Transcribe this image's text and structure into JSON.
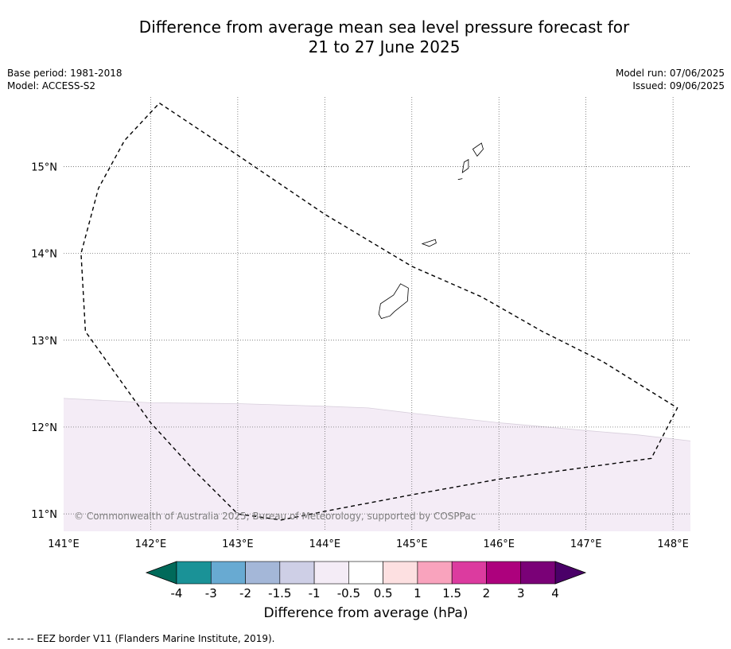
{
  "header": {
    "title_line1": "Difference from average mean sea level pressure forecast for",
    "title_line2": "21 to 27 June 2025",
    "base_period": "Base period: 1981-2018",
    "model": "Model: ACCESS-S2",
    "model_run": "Model run: 07/06/2025",
    "issued": "Issued: 09/06/2025"
  },
  "map": {
    "lon_range": [
      141,
      148.2
    ],
    "lat_range": [
      10.8,
      15.8
    ],
    "lon_ticks": [
      {
        "value": 141,
        "label": "141°E"
      },
      {
        "value": 142,
        "label": "142°E"
      },
      {
        "value": 143,
        "label": "143°E"
      },
      {
        "value": 144,
        "label": "144°E"
      },
      {
        "value": 145,
        "label": "145°E"
      },
      {
        "value": 146,
        "label": "146°E"
      },
      {
        "value": 147,
        "label": "147°E"
      },
      {
        "value": 148,
        "label": "148°E"
      }
    ],
    "lat_ticks": [
      {
        "value": 15,
        "label": "15°N"
      },
      {
        "value": 14,
        "label": "14°N"
      },
      {
        "value": 13,
        "label": "13°N"
      },
      {
        "value": 12,
        "label": "12°N"
      },
      {
        "value": 11,
        "label": "11°N"
      }
    ],
    "gridlines": true,
    "copyright": "© Commonwealth of Australia 2025, Bureau of Meteorology, supported by COSPPac",
    "anomaly_region": {
      "category": "-1 to -0.5",
      "color": "#f4ecf6",
      "northern_edge": [
        [
          141.0,
          12.33
        ],
        [
          142.0,
          12.28
        ],
        [
          143.0,
          12.27
        ],
        [
          144.0,
          12.24
        ],
        [
          144.5,
          12.22
        ],
        [
          145.0,
          12.16
        ],
        [
          146.0,
          12.05
        ],
        [
          147.0,
          11.96
        ],
        [
          147.6,
          11.91
        ],
        [
          148.2,
          11.84
        ]
      ]
    },
    "eez_border": [
      [
        142.1,
        15.73
      ],
      [
        143.0,
        15.13
      ],
      [
        144.0,
        14.45
      ],
      [
        145.0,
        13.85
      ],
      [
        145.8,
        13.5
      ],
      [
        146.5,
        13.1
      ],
      [
        147.2,
        12.75
      ],
      [
        148.05,
        12.22
      ],
      [
        147.75,
        11.64
      ],
      [
        146.0,
        11.4
      ],
      [
        145.0,
        11.22
      ],
      [
        144.0,
        11.03
      ],
      [
        143.5,
        10.93
      ],
      [
        143.0,
        11.0
      ],
      [
        142.5,
        11.5
      ],
      [
        142.0,
        12.05
      ],
      [
        141.25,
        13.1
      ],
      [
        141.2,
        14.0
      ],
      [
        141.4,
        14.75
      ],
      [
        141.7,
        15.3
      ],
      [
        142.1,
        15.73
      ]
    ],
    "islands": [
      {
        "name": "Guam",
        "coords": [
          [
            144.87,
            13.65
          ],
          [
            144.96,
            13.6
          ],
          [
            144.95,
            13.45
          ],
          [
            144.8,
            13.33
          ],
          [
            144.75,
            13.28
          ],
          [
            144.65,
            13.25
          ],
          [
            144.62,
            13.3
          ],
          [
            144.64,
            13.42
          ],
          [
            144.79,
            13.52
          ],
          [
            144.87,
            13.65
          ]
        ]
      },
      {
        "name": "Rota",
        "coords": [
          [
            145.12,
            14.11
          ],
          [
            145.27,
            14.16
          ],
          [
            145.28,
            14.12
          ],
          [
            145.2,
            14.08
          ],
          [
            145.12,
            14.11
          ]
        ]
      },
      {
        "name": "Tinian",
        "coords": [
          [
            145.6,
            15.05
          ],
          [
            145.65,
            15.08
          ],
          [
            145.65,
            14.98
          ],
          [
            145.58,
            14.93
          ],
          [
            145.6,
            15.05
          ]
        ]
      },
      {
        "name": "Saipan",
        "coords": [
          [
            145.7,
            15.2
          ],
          [
            145.8,
            15.27
          ],
          [
            145.82,
            15.2
          ],
          [
            145.75,
            15.12
          ],
          [
            145.7,
            15.2
          ]
        ]
      },
      {
        "name": "Aguijan",
        "coords": [
          [
            145.53,
            14.85
          ],
          [
            145.58,
            14.86
          ]
        ]
      }
    ]
  },
  "colorbar": {
    "label": "Difference from average (hPa)",
    "tick_labels": [
      "-4",
      "-3",
      "-2",
      "-1.5",
      "-1",
      "-0.5",
      "0.5",
      "1",
      "1.5",
      "2",
      "3",
      "4"
    ],
    "extend_low_color": "#006a5a",
    "extend_high_color": "#4a0068",
    "colors": [
      "#1a9297",
      "#68aad2",
      "#a4b7d8",
      "#cecfe6",
      "#f4ecf6",
      "#ffffff",
      "#fde0e1",
      "#f9a3bd",
      "#dc3b9f",
      "#ad017d",
      "#7a0177"
    ]
  },
  "footnote": "-- -- -- EEZ border V11 (Flanders Marine Institute, 2019)."
}
